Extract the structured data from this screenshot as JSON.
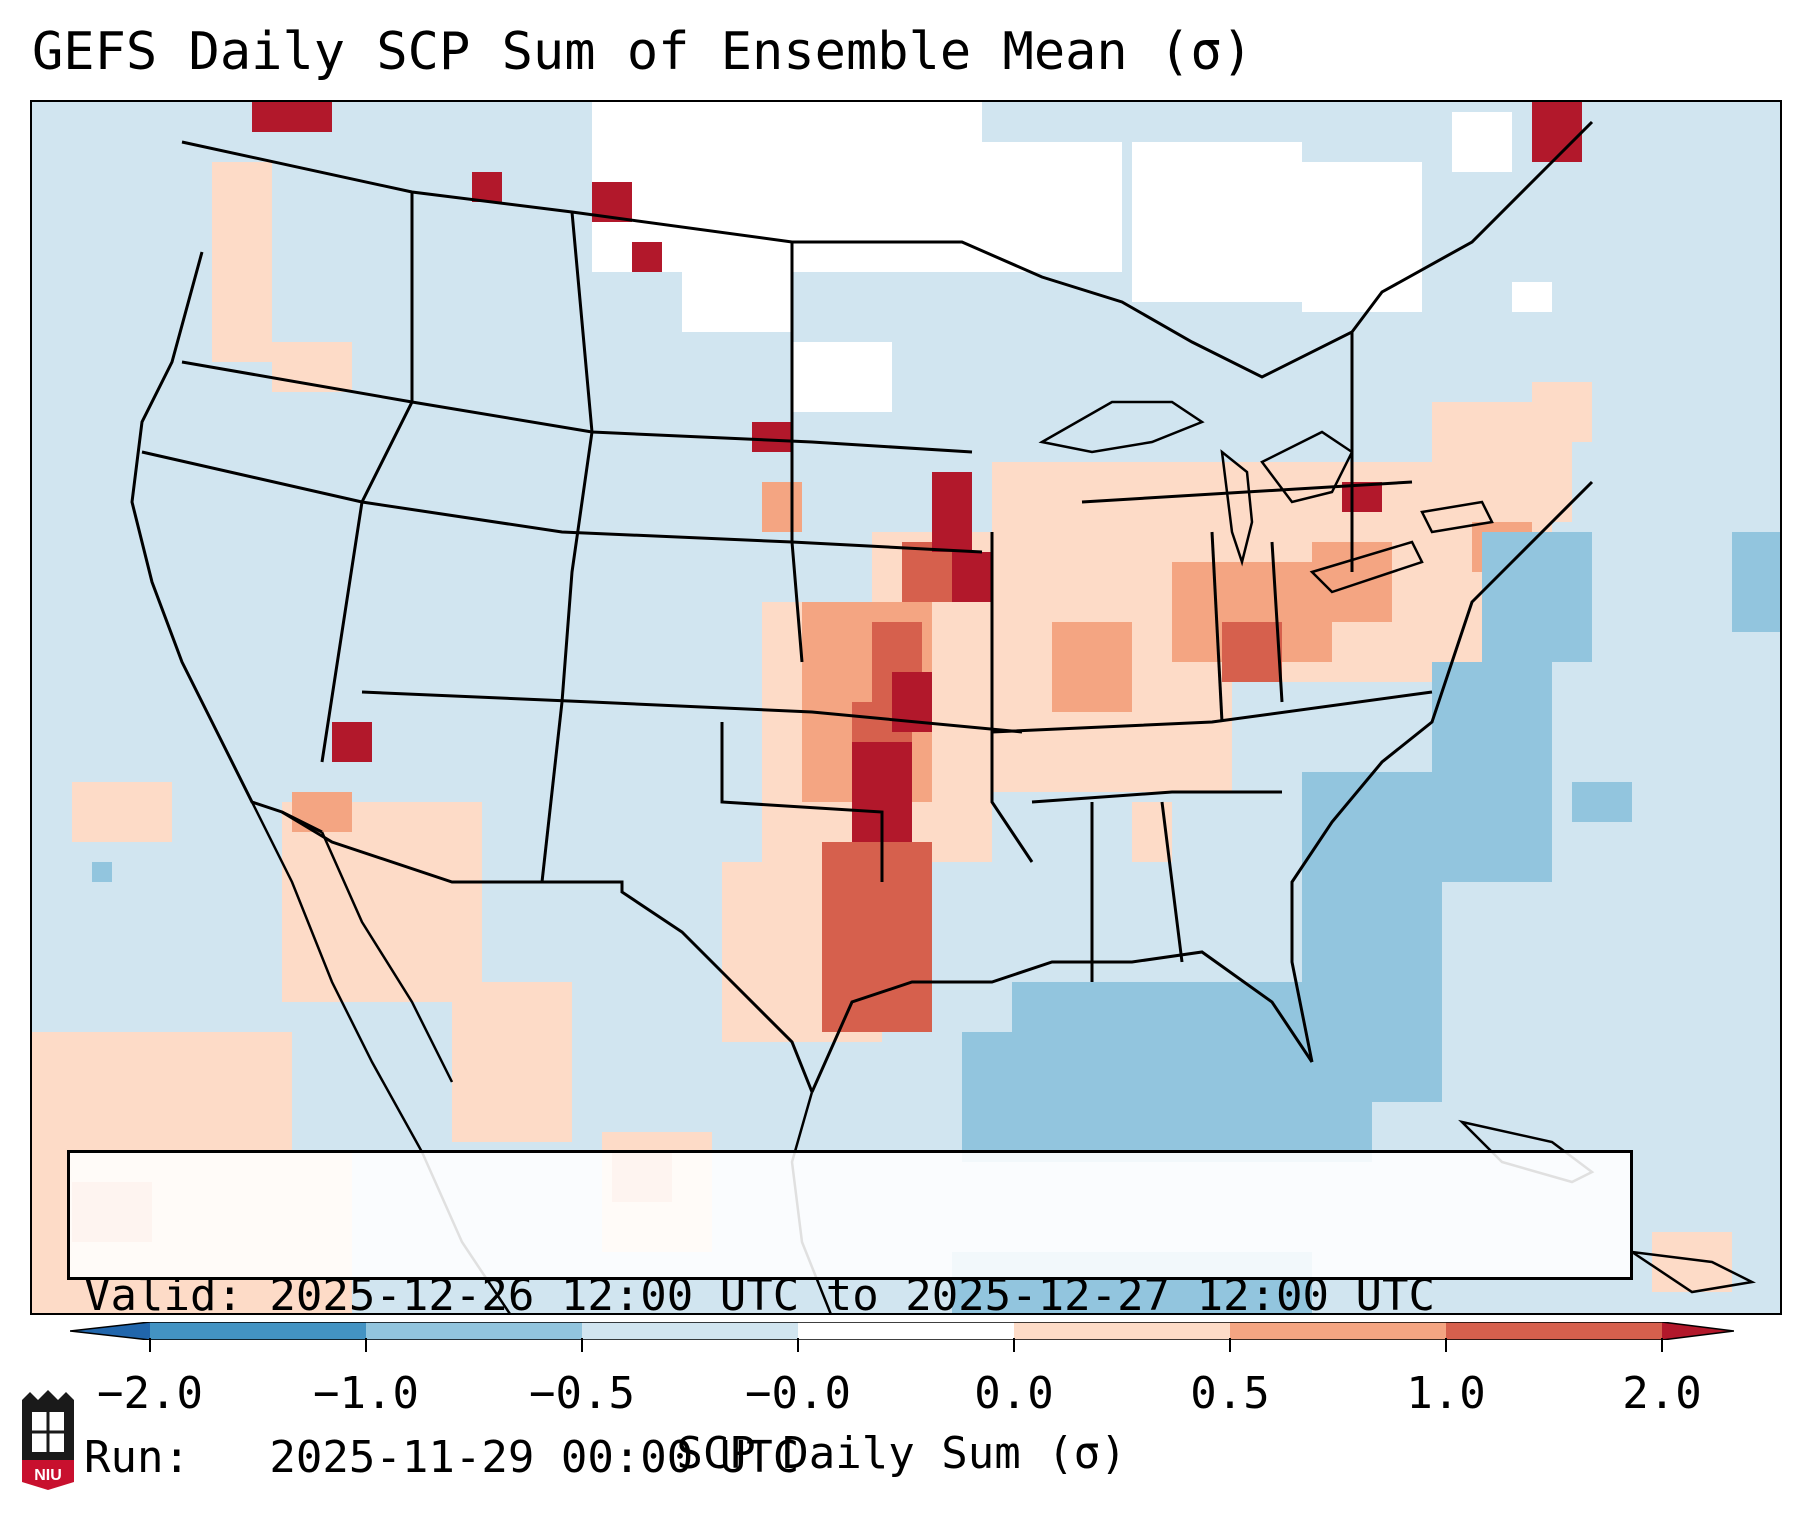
{
  "title": "GEFS Daily SCP Sum of Ensemble Mean (σ)",
  "info": {
    "valid": "Valid: 2025-12-26 12:00 UTC to 2025-12-27 12:00 UTC",
    "run": "Run:   2025-11-29 00:00 UTC"
  },
  "colorbar": {
    "label": "SCP Daily Sum (σ)",
    "ticks": [
      "−2.0",
      "−1.0",
      "−0.5",
      "−0.0",
      "0.0",
      "0.5",
      "1.0",
      "2.0"
    ],
    "colors": [
      "#4393c3",
      "#92c5de",
      "#d1e5f0",
      "#ffffff",
      "#fddbc7",
      "#f4a582",
      "#d6604d",
      "#b2182b"
    ]
  },
  "logo": {
    "text": "NIU",
    "icon": "niu-logo-icon"
  }
}
